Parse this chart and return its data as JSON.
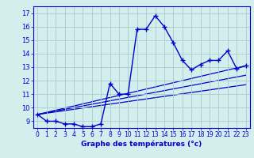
{
  "xlabel": "Graphe des températures (°c)",
  "x": [
    0,
    1,
    2,
    3,
    4,
    5,
    6,
    7,
    8,
    9,
    10,
    11,
    12,
    13,
    14,
    15,
    16,
    17,
    18,
    19,
    20,
    21,
    22,
    23
  ],
  "temp": [
    9.5,
    9.0,
    9.0,
    8.8,
    8.8,
    8.6,
    8.6,
    8.8,
    11.8,
    11.0,
    11.0,
    15.8,
    15.8,
    16.8,
    16.0,
    14.8,
    13.5,
    12.8,
    13.2,
    13.5,
    13.5,
    14.2,
    12.9,
    13.1
  ],
  "bg_color": "#d4eeee",
  "line_color": "#0000cc",
  "grid_color": "#aacccc",
  "ylim": [
    8.5,
    17.5
  ],
  "xlim": [
    -0.5,
    23.5
  ],
  "yticks": [
    9,
    10,
    11,
    12,
    13,
    14,
    15,
    16,
    17
  ],
  "xticks": [
    0,
    1,
    2,
    3,
    4,
    5,
    6,
    7,
    8,
    9,
    10,
    11,
    12,
    13,
    14,
    15,
    16,
    17,
    18,
    19,
    20,
    21,
    22,
    23
  ],
  "trend_x0": 0,
  "trend_x1": 23,
  "trend1_y0": 9.5,
  "trend1_y1": 13.1,
  "trend2_y0": 9.5,
  "trend2_y1": 12.4,
  "trend3_y0": 9.5,
  "trend3_y1": 11.7
}
